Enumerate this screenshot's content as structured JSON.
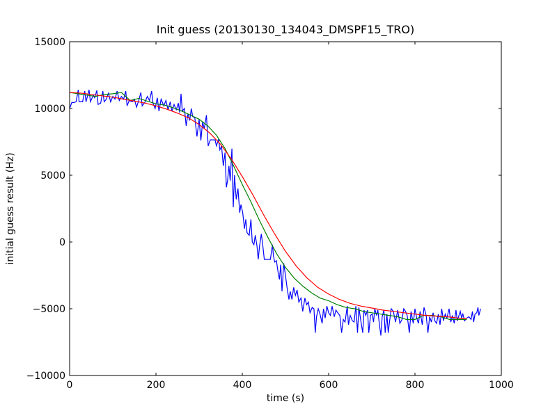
{
  "chart_data": {
    "type": "line",
    "title": "Init guess (20130130_134043_DMSPF15_TRO)",
    "xlabel": "time (s)",
    "ylabel": "initial guess result (Hz)",
    "xlim": [
      0,
      1000
    ],
    "ylim": [
      -10000,
      15000
    ],
    "xticks": [
      0,
      200,
      400,
      600,
      800,
      1000
    ],
    "yticks": [
      -10000,
      -5000,
      0,
      5000,
      10000,
      15000
    ],
    "xtick_labels": [
      "0",
      "200",
      "400",
      "600",
      "800",
      "1000"
    ],
    "ytick_labels": [
      "−10000",
      "−5000",
      "0",
      "5000",
      "10000",
      "15000"
    ],
    "grid": false,
    "legend": "none",
    "series": [
      {
        "color": "#0000ff",
        "points": [
          [
            0,
            10000
          ],
          [
            5,
            10450
          ],
          [
            10,
            10450
          ],
          [
            15,
            10500
          ],
          [
            20,
            11400
          ],
          [
            22,
            10500
          ],
          [
            30,
            10500
          ],
          [
            35,
            11300
          ],
          [
            38,
            10500
          ],
          [
            45,
            11400
          ],
          [
            48,
            10500
          ],
          [
            55,
            11000
          ],
          [
            58,
            10800
          ],
          [
            63,
            11350
          ],
          [
            66,
            10300
          ],
          [
            72,
            10400
          ],
          [
            77,
            11300
          ],
          [
            80,
            10500
          ],
          [
            85,
            10700
          ],
          [
            90,
            11150
          ],
          [
            95,
            10500
          ],
          [
            100,
            10900
          ],
          [
            105,
            10700
          ],
          [
            110,
            11300
          ],
          [
            115,
            10600
          ],
          [
            120,
            10900
          ],
          [
            125,
            10700
          ],
          [
            130,
            11300
          ],
          [
            133,
            10200
          ],
          [
            138,
            10600
          ],
          [
            145,
            10500
          ],
          [
            150,
            10700
          ],
          [
            155,
            10100
          ],
          [
            160,
            10600
          ],
          [
            165,
            11200
          ],
          [
            168,
            10200
          ],
          [
            175,
            10500
          ],
          [
            180,
            10900
          ],
          [
            185,
            10600
          ],
          [
            190,
            11300
          ],
          [
            193,
            10400
          ],
          [
            198,
            10000
          ],
          [
            203,
            10800
          ],
          [
            207,
            9800
          ],
          [
            212,
            10700
          ],
          [
            218,
            10200
          ],
          [
            223,
            10600
          ],
          [
            228,
            9900
          ],
          [
            233,
            10500
          ],
          [
            237,
            9800
          ],
          [
            242,
            10300
          ],
          [
            247,
            9900
          ],
          [
            252,
            10400
          ],
          [
            255,
            9700
          ],
          [
            258,
            11100
          ],
          [
            261,
            9800
          ],
          [
            266,
            10000
          ],
          [
            270,
            8700
          ],
          [
            274,
            9600
          ],
          [
            278,
            9100
          ],
          [
            282,
            10000
          ],
          [
            285,
            9400
          ],
          [
            290,
            9300
          ],
          [
            295,
            7900
          ],
          [
            300,
            9200
          ],
          [
            304,
            7600
          ],
          [
            308,
            9000
          ],
          [
            312,
            8500
          ],
          [
            317,
            9500
          ],
          [
            321,
            7200
          ],
          [
            326,
            7650
          ],
          [
            337,
            7650
          ],
          [
            340,
            7200
          ],
          [
            345,
            7700
          ],
          [
            348,
            6900
          ],
          [
            352,
            7200
          ],
          [
            356,
            5700
          ],
          [
            360,
            6700
          ],
          [
            363,
            4100
          ],
          [
            366,
            4600
          ],
          [
            369,
            5700
          ],
          [
            372,
            4600
          ],
          [
            376,
            7000
          ],
          [
            379,
            2600
          ],
          [
            382,
            5000
          ],
          [
            386,
            3200
          ],
          [
            390,
            4000
          ],
          [
            394,
            2200
          ],
          [
            397,
            2800
          ],
          [
            401,
            2200
          ],
          [
            405,
            1000
          ],
          [
            408,
            1700
          ],
          [
            411,
            700
          ],
          [
            416,
            500
          ],
          [
            420,
            1700
          ],
          [
            423,
            0
          ],
          [
            427,
            -200
          ],
          [
            430,
            500
          ],
          [
            434,
            -300
          ],
          [
            437,
            -1300
          ],
          [
            440,
            -300
          ],
          [
            444,
            600
          ],
          [
            447,
            -100
          ],
          [
            451,
            -1300
          ],
          [
            465,
            -1300
          ],
          [
            470,
            -200
          ],
          [
            472,
            -1000
          ],
          [
            475,
            -1500
          ],
          [
            479,
            -1400
          ],
          [
            483,
            -2300
          ],
          [
            486,
            -2800
          ],
          [
            489,
            -1700
          ],
          [
            492,
            -3700
          ],
          [
            496,
            -1600
          ],
          [
            500,
            -2500
          ],
          [
            504,
            -3500
          ],
          [
            508,
            -4300
          ],
          [
            511,
            -3700
          ],
          [
            515,
            -4300
          ],
          [
            519,
            -3400
          ],
          [
            523,
            -4000
          ],
          [
            527,
            -3600
          ],
          [
            531,
            -4500
          ],
          [
            536,
            -4200
          ],
          [
            540,
            -5200
          ],
          [
            545,
            -4200
          ],
          [
            549,
            -4700
          ],
          [
            553,
            -4500
          ],
          [
            557,
            -5300
          ],
          [
            562,
            -4900
          ],
          [
            566,
            -5000
          ],
          [
            569,
            -6800
          ],
          [
            572,
            -5600
          ],
          [
            576,
            -5000
          ],
          [
            580,
            -5400
          ],
          [
            585,
            -6100
          ],
          [
            588,
            -5000
          ],
          [
            592,
            -5700
          ],
          [
            596,
            -4800
          ],
          [
            600,
            -5300
          ],
          [
            604,
            -5500
          ],
          [
            608,
            -4800
          ],
          [
            613,
            -5600
          ],
          [
            617,
            -5100
          ],
          [
            621,
            -5300
          ],
          [
            626,
            -5500
          ],
          [
            630,
            -6800
          ],
          [
            634,
            -5800
          ],
          [
            638,
            -6000
          ],
          [
            643,
            -4800
          ],
          [
            646,
            -6200
          ],
          [
            650,
            -5500
          ],
          [
            655,
            -5900
          ],
          [
            659,
            -6000
          ],
          [
            663,
            -4800
          ],
          [
            667,
            -6800
          ],
          [
            670,
            -4900
          ],
          [
            675,
            -6000
          ],
          [
            679,
            -6800
          ],
          [
            682,
            -5100
          ],
          [
            686,
            -5500
          ],
          [
            690,
            -5100
          ],
          [
            693,
            -6800
          ],
          [
            697,
            -5500
          ],
          [
            701,
            -5400
          ],
          [
            704,
            -6000
          ],
          [
            707,
            -5000
          ],
          [
            711,
            -5500
          ],
          [
            714,
            -5100
          ],
          [
            717,
            -6000
          ],
          [
            721,
            -7000
          ],
          [
            724,
            -5600
          ],
          [
            728,
            -5100
          ],
          [
            731,
            -6800
          ],
          [
            735,
            -5400
          ],
          [
            738,
            -6800
          ],
          [
            741,
            -6000
          ],
          [
            745,
            -5000
          ],
          [
            750,
            -5200
          ],
          [
            755,
            -6000
          ],
          [
            760,
            -5100
          ],
          [
            765,
            -6100
          ],
          [
            770,
            -5800
          ],
          [
            774,
            -5000
          ],
          [
            778,
            -5200
          ],
          [
            782,
            -5500
          ],
          [
            787,
            -6800
          ],
          [
            791,
            -5200
          ],
          [
            796,
            -6100
          ],
          [
            800,
            -5000
          ],
          [
            804,
            -5700
          ],
          [
            808,
            -6100
          ],
          [
            812,
            -5200
          ],
          [
            817,
            -6200
          ],
          [
            821,
            -4900
          ],
          [
            826,
            -5500
          ],
          [
            830,
            -6800
          ],
          [
            834,
            -5600
          ],
          [
            838,
            -6000
          ],
          [
            842,
            -5300
          ],
          [
            846,
            -5900
          ],
          [
            850,
            -6100
          ],
          [
            854,
            -5400
          ],
          [
            858,
            -6200
          ],
          [
            862,
            -5000
          ],
          [
            866,
            -5900
          ],
          [
            870,
            -5400
          ],
          [
            874,
            -5700
          ],
          [
            879,
            -5000
          ],
          [
            883,
            -6000
          ],
          [
            887,
            -5500
          ],
          [
            891,
            -6100
          ],
          [
            895,
            -5100
          ],
          [
            898,
            -5900
          ],
          [
            902,
            -5500
          ],
          [
            905,
            -5200
          ],
          [
            908,
            -5700
          ],
          [
            911,
            -5400
          ],
          [
            915,
            -5900
          ],
          [
            920,
            -5700
          ],
          [
            925,
            -5600
          ],
          [
            930,
            -5800
          ],
          [
            933,
            -5200
          ],
          [
            936,
            -6000
          ],
          [
            939,
            -5400
          ],
          [
            943,
            -5300
          ],
          [
            946,
            -4900
          ],
          [
            948,
            -5500
          ],
          [
            952,
            -5000
          ]
        ]
      },
      {
        "color": "#008000",
        "points": [
          [
            0,
            11200
          ],
          [
            20,
            11100
          ],
          [
            40,
            11000
          ],
          [
            60,
            10900
          ],
          [
            80,
            11050
          ],
          [
            100,
            11100
          ],
          [
            120,
            11200
          ],
          [
            140,
            10600
          ],
          [
            160,
            10750
          ],
          [
            180,
            10550
          ],
          [
            200,
            10350
          ],
          [
            220,
            10250
          ],
          [
            240,
            10050
          ],
          [
            260,
            9800
          ],
          [
            280,
            9500
          ],
          [
            300,
            9200
          ],
          [
            320,
            8700
          ],
          [
            340,
            8000
          ],
          [
            360,
            7000
          ],
          [
            380,
            5700
          ],
          [
            400,
            4300
          ],
          [
            420,
            3000
          ],
          [
            440,
            1600
          ],
          [
            460,
            300
          ],
          [
            480,
            -900
          ],
          [
            500,
            -1900
          ],
          [
            520,
            -2700
          ],
          [
            540,
            -3300
          ],
          [
            560,
            -3800
          ],
          [
            580,
            -4200
          ],
          [
            600,
            -4400
          ],
          [
            620,
            -4700
          ],
          [
            640,
            -4900
          ],
          [
            660,
            -5000
          ],
          [
            680,
            -5200
          ],
          [
            700,
            -5300
          ],
          [
            720,
            -5400
          ],
          [
            740,
            -5500
          ],
          [
            760,
            -5600
          ],
          [
            780,
            -5800
          ],
          [
            800,
            -5800
          ],
          [
            820,
            -5500
          ],
          [
            840,
            -5500
          ],
          [
            860,
            -5600
          ],
          [
            880,
            -5800
          ],
          [
            900,
            -5800
          ],
          [
            920,
            -5800
          ]
        ]
      },
      {
        "color": "#ff0000",
        "points": [
          [
            0,
            11200
          ],
          [
            25,
            11150
          ],
          [
            50,
            11050
          ],
          [
            75,
            10950
          ],
          [
            100,
            10850
          ],
          [
            125,
            10700
          ],
          [
            150,
            10550
          ],
          [
            175,
            10400
          ],
          [
            200,
            10200
          ],
          [
            225,
            9950
          ],
          [
            250,
            9650
          ],
          [
            275,
            9300
          ],
          [
            300,
            8800
          ],
          [
            325,
            8150
          ],
          [
            350,
            7300
          ],
          [
            375,
            6200
          ],
          [
            400,
            4900
          ],
          [
            425,
            3500
          ],
          [
            450,
            2000
          ],
          [
            475,
            600
          ],
          [
            500,
            -700
          ],
          [
            525,
            -1800
          ],
          [
            550,
            -2700
          ],
          [
            575,
            -3400
          ],
          [
            600,
            -3900
          ],
          [
            625,
            -4300
          ],
          [
            650,
            -4600
          ],
          [
            675,
            -4800
          ],
          [
            700,
            -4950
          ],
          [
            725,
            -5100
          ],
          [
            750,
            -5200
          ],
          [
            775,
            -5300
          ],
          [
            800,
            -5400
          ],
          [
            825,
            -5500
          ],
          [
            850,
            -5550
          ],
          [
            875,
            -5600
          ],
          [
            900,
            -5700
          ],
          [
            920,
            -5750
          ]
        ]
      }
    ]
  }
}
